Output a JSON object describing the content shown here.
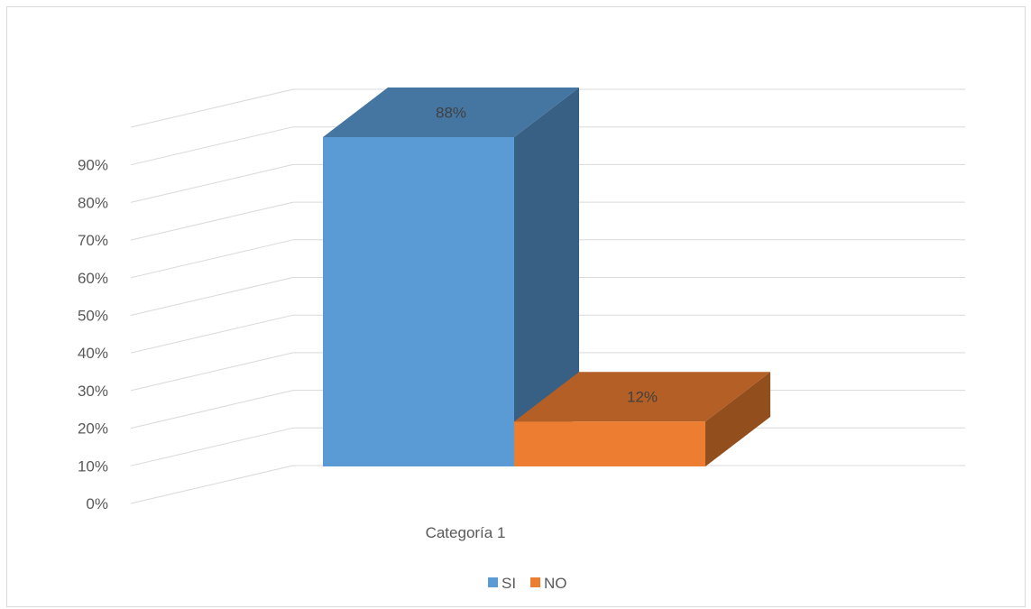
{
  "chart_data": {
    "type": "bar",
    "categories": [
      "Categoría 1"
    ],
    "series": [
      {
        "name": "SI",
        "values": [
          0.88
        ],
        "label": "88%",
        "color": "#5b9bd5"
      },
      {
        "name": "NO",
        "values": [
          0.12
        ],
        "label": "12%",
        "color": "#ed7d31"
      }
    ],
    "ylim": [
      0,
      0.9
    ],
    "ytick_labels": [
      "0%",
      "10%",
      "20%",
      "30%",
      "40%",
      "50%",
      "60%",
      "70%",
      "80%",
      "90%"
    ],
    "grid": true,
    "legend_position": "bottom",
    "style": "3d-column"
  }
}
